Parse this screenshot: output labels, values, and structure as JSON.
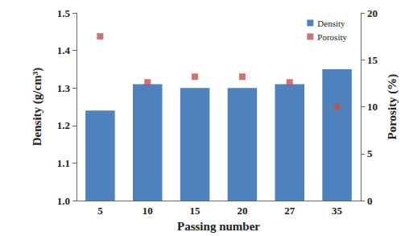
{
  "chart_data": {
    "type": "bar",
    "categories": [
      "5",
      "10",
      "15",
      "20",
      "27",
      "35"
    ],
    "x_label": "Passing number",
    "y_label": "Density (g/cm³)",
    "y2_label": "Porosity (%)",
    "series": [
      {
        "name": "Density",
        "type": "bar",
        "color": "#4f81bd",
        "values": [
          1.24,
          1.31,
          1.3,
          1.3,
          1.31,
          1.35
        ]
      },
      {
        "name": "Porosity",
        "type": "scatter",
        "color": "#c0504d",
        "marker": "square",
        "axis": "y2",
        "values": [
          17.5,
          12.6,
          13.2,
          13.2,
          12.6,
          10.0
        ]
      }
    ],
    "ylim": [
      1,
      1.5
    ],
    "yticks": [
      {
        "value": 1,
        "label": "1.0"
      },
      1.1,
      1.2,
      1.3,
      1.4,
      1.5
    ],
    "y2lim": [
      0,
      20
    ],
    "y2ticks": [
      0,
      5,
      10,
      15,
      20
    ],
    "legend": "upper right",
    "grid": false
  }
}
